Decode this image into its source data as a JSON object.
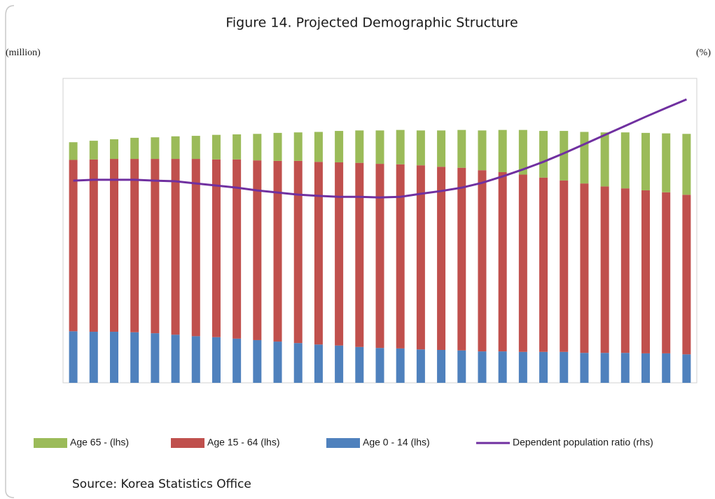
{
  "chart_data": {
    "type": "bar",
    "stacked": true,
    "title": "Figure 14. Projected Demographic Structure",
    "y_label": "(million)",
    "y2_label": "(%)",
    "source": "Source: Korea Statistics Office",
    "categories": [
      null,
      null,
      null,
      null,
      null,
      null,
      null,
      null,
      null,
      null,
      null,
      null,
      null,
      null,
      null,
      null,
      null,
      null,
      null,
      null,
      null,
      null,
      null,
      null,
      null,
      null,
      null,
      null,
      null,
      null,
      null
    ],
    "ylim": [
      0,
      62
    ],
    "y2lim": [
      0,
      100
    ],
    "grid": false,
    "series": [
      {
        "name": "Age 0 - 14 (lhs)",
        "color": "#4f81bd",
        "values": [
          10.5,
          10.4,
          10.4,
          10.3,
          10.1,
          9.8,
          9.5,
          9.3,
          9.0,
          8.7,
          8.4,
          8.1,
          7.8,
          7.6,
          7.3,
          7.1,
          7.0,
          6.8,
          6.7,
          6.6,
          6.4,
          6.4,
          6.3,
          6.3,
          6.3,
          6.1,
          6.1,
          6.1,
          6.0,
          6.0,
          5.8
        ]
      },
      {
        "name": "Age 15 - 64 (lhs)",
        "color": "#c0504d",
        "values": [
          34.9,
          35.1,
          35.2,
          35.3,
          35.5,
          35.8,
          36.1,
          36.2,
          36.5,
          36.6,
          36.8,
          37.1,
          37.2,
          37.3,
          37.5,
          37.5,
          37.5,
          37.5,
          37.3,
          37.2,
          36.9,
          36.5,
          36.1,
          35.5,
          34.9,
          34.5,
          33.9,
          33.5,
          33.2,
          32.8,
          32.5
        ]
      },
      {
        "name": "Age 65 - (lhs)",
        "color": "#9bbb59",
        "values": [
          3.6,
          3.8,
          4.0,
          4.3,
          4.4,
          4.6,
          4.7,
          5.0,
          5.1,
          5.4,
          5.7,
          5.8,
          6.1,
          6.4,
          6.6,
          6.8,
          7.0,
          7.1,
          7.4,
          7.7,
          8.1,
          8.6,
          9.1,
          9.5,
          10.1,
          10.5,
          11.0,
          11.4,
          11.7,
          12.0,
          12.4
        ]
      },
      {
        "name": "Dependent population ratio (rhs)",
        "color": "#7030a0",
        "type": "line",
        "axis": "y2",
        "values": [
          66.4,
          66.7,
          66.7,
          66.7,
          66.4,
          66.2,
          65.5,
          64.8,
          64.1,
          63.2,
          62.5,
          61.8,
          61.4,
          61.1,
          61.1,
          60.9,
          61.1,
          62.1,
          63.0,
          64.1,
          65.7,
          67.8,
          70.1,
          72.6,
          75.4,
          78.4,
          81.4,
          84.4,
          87.4,
          90.3,
          93.1
        ]
      }
    ]
  }
}
